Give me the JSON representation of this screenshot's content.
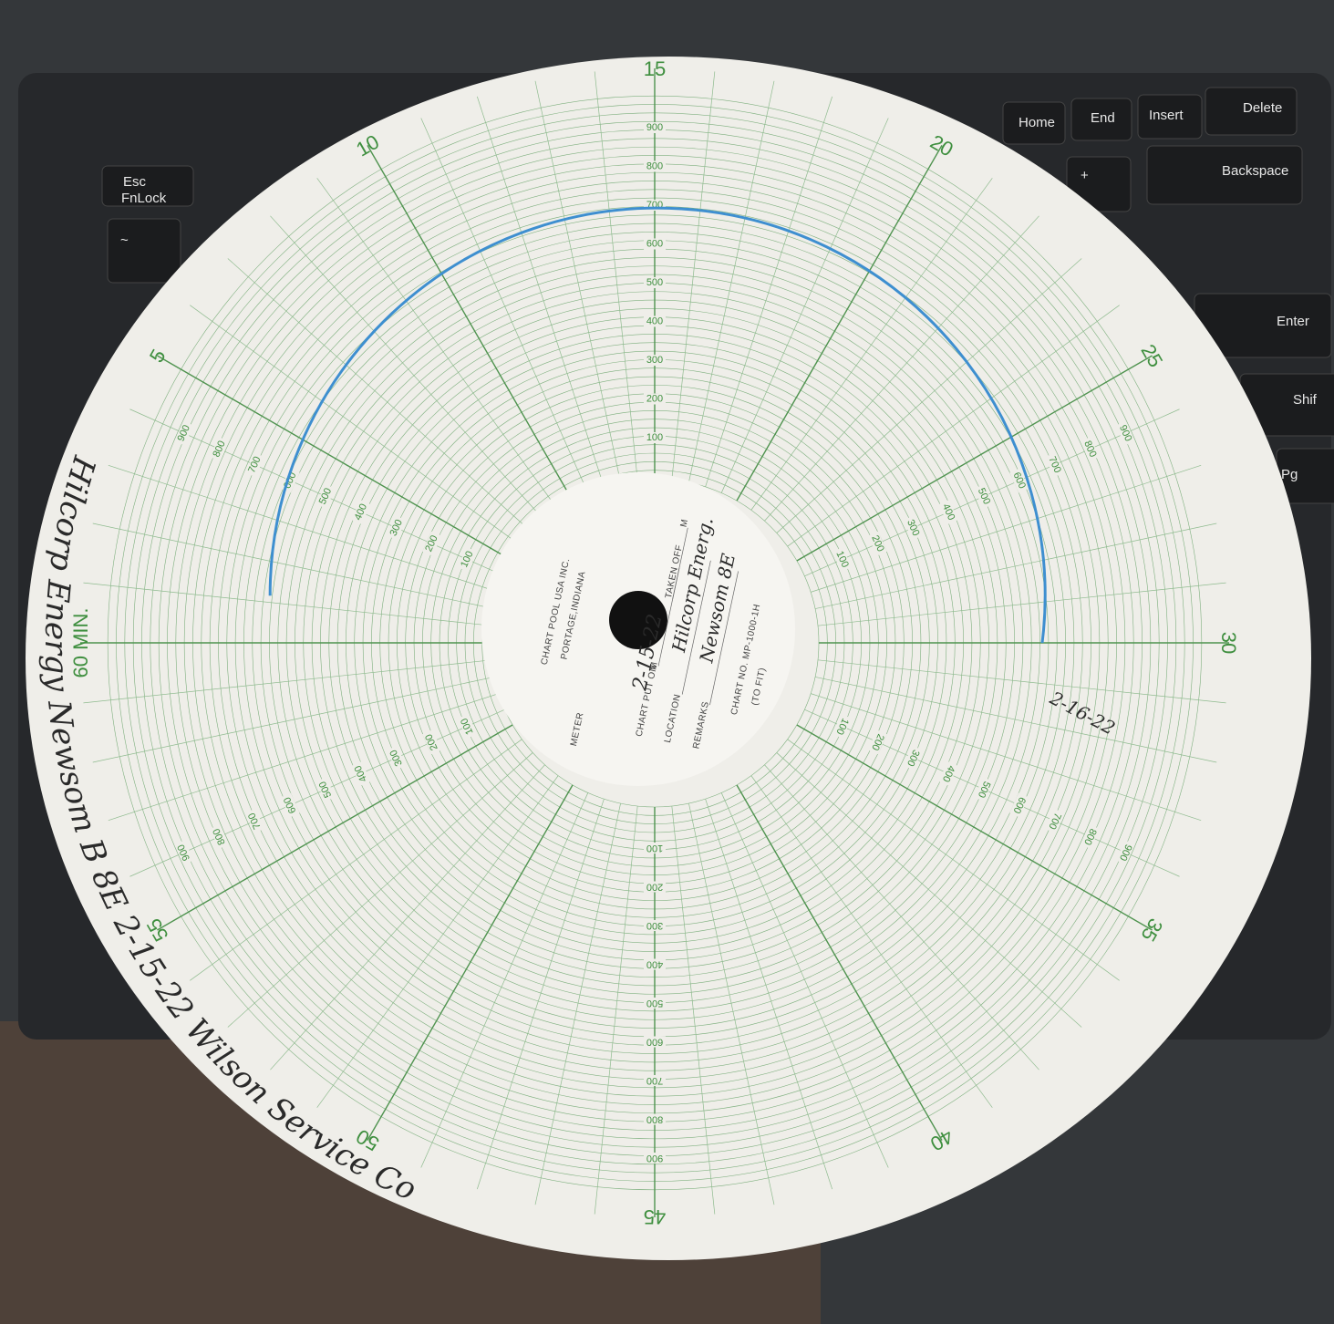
{
  "keyboard": {
    "keys": [
      "Esc",
      "FnLock",
      "Home",
      "End",
      "Insert",
      "Delete",
      "Backspace",
      "Enter",
      "Shif",
      "Pg",
      "~",
      "+"
    ]
  },
  "chart_paper": {
    "minute_labels": [
      "5",
      "10",
      "15",
      "20",
      "25",
      "30",
      "35",
      "40",
      "45",
      "50",
      "55",
      "60 MIN."
    ],
    "scale_labels": [
      "100",
      "200",
      "300",
      "400",
      "500",
      "600",
      "700",
      "800",
      "900"
    ],
    "hub": {
      "company": "CHART POOL USA INC.",
      "city": "PORTAGE,INDIANA",
      "fields": [
        "METER",
        "CHART PUT ON",
        "M",
        "TAKEN OFF",
        "M",
        "LOCATION",
        "REMARKS",
        "CHART NO. MP-1000-1H",
        "(TO FIT)"
      ]
    },
    "handwriting": {
      "put_on_date": "2-15-22",
      "location": "Hilcorp Energ.",
      "remarks": "Newsom 8E",
      "taken_off_date": "2-16-22",
      "edge_note": "Hilcorp Energy Newsom B 8E 2-15-22 Wilson Service Co"
    }
  }
}
